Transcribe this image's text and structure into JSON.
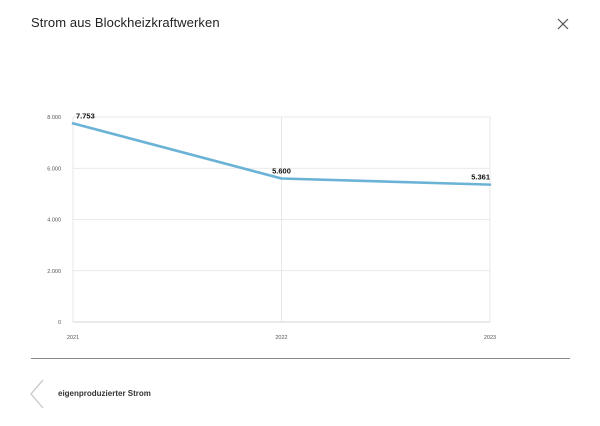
{
  "header": {
    "title": "Strom aus Blockheizkraftwerken"
  },
  "icons": {
    "close": "close-icon",
    "back": "chevron-left-icon"
  },
  "footer": {
    "label": "eigenproduzierter Strom"
  },
  "colors": {
    "line": "#6bb3d6",
    "grid": "#e2e2e2",
    "divider": "#8a8a8a"
  },
  "chart_data": {
    "type": "line",
    "categories": [
      "2021",
      "2022",
      "2023"
    ],
    "series": [
      {
        "values": [
          7753,
          5600,
          5361
        ],
        "data_labels": [
          "7.753",
          "5.600",
          "5.361"
        ]
      }
    ],
    "yticks": [
      0,
      2000,
      4000,
      6000,
      8000
    ],
    "ytick_labels": [
      "0",
      "2.000",
      "4.000",
      "6.000",
      "8.000"
    ],
    "ylim": [
      0,
      8000
    ],
    "grid": true,
    "legend": false
  }
}
